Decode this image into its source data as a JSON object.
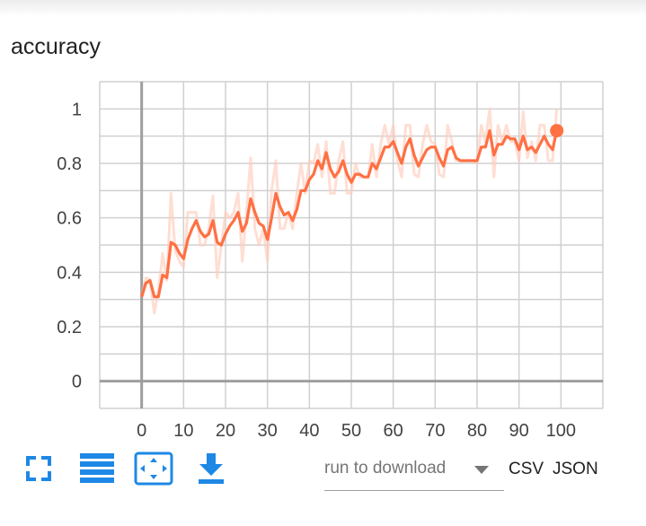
{
  "card": {
    "title": "accuracy"
  },
  "colors": {
    "accent": "#ff7043",
    "accent_raw": "#ffccbc",
    "toolbar_icon": "#1e88e5",
    "grid": "#d0d0d0",
    "axis": "#9e9e9e"
  },
  "chart_data": {
    "type": "line",
    "xlabel": "",
    "ylabel": "",
    "xlim": [
      -10,
      110
    ],
    "ylim": [
      -0.1,
      1.1
    ],
    "xticks": [
      "0",
      "10",
      "20",
      "30",
      "40",
      "50",
      "60",
      "70",
      "80",
      "90",
      "100"
    ],
    "yticks": [
      "0",
      "0.2",
      "0.4",
      "0.6",
      "0.8",
      "1"
    ],
    "grid": true,
    "series": [
      {
        "role": "smoothed",
        "x": [
          0,
          1,
          2,
          3,
          4,
          5,
          6,
          7,
          8,
          9,
          10,
          11,
          12,
          13,
          14,
          15,
          16,
          17,
          18,
          19,
          20,
          21,
          22,
          23,
          24,
          25,
          26,
          27,
          28,
          29,
          30,
          31,
          32,
          33,
          34,
          35,
          36,
          37,
          38,
          39,
          40,
          41,
          42,
          43,
          44,
          45,
          46,
          47,
          48,
          49,
          50,
          51,
          52,
          53,
          54,
          55,
          56,
          57,
          58,
          59,
          60,
          61,
          62,
          63,
          64,
          65,
          66,
          67,
          68,
          69,
          70,
          71,
          72,
          73,
          74,
          75,
          76,
          77,
          78,
          79,
          80,
          81,
          82,
          83,
          84,
          85,
          86,
          87,
          88,
          89,
          90,
          91,
          92,
          93,
          94,
          95,
          96,
          97,
          98,
          99
        ],
        "y": [
          0.31,
          0.36,
          0.37,
          0.31,
          0.31,
          0.39,
          0.38,
          0.51,
          0.5,
          0.47,
          0.45,
          0.52,
          0.56,
          0.59,
          0.55,
          0.53,
          0.54,
          0.59,
          0.51,
          0.5,
          0.54,
          0.57,
          0.59,
          0.62,
          0.55,
          0.58,
          0.67,
          0.62,
          0.58,
          0.57,
          0.52,
          0.6,
          0.69,
          0.64,
          0.61,
          0.62,
          0.59,
          0.63,
          0.7,
          0.7,
          0.74,
          0.76,
          0.81,
          0.78,
          0.84,
          0.78,
          0.75,
          0.77,
          0.81,
          0.76,
          0.73,
          0.76,
          0.76,
          0.75,
          0.75,
          0.8,
          0.78,
          0.82,
          0.86,
          0.86,
          0.88,
          0.84,
          0.8,
          0.86,
          0.89,
          0.83,
          0.79,
          0.82,
          0.85,
          0.86,
          0.86,
          0.82,
          0.79,
          0.85,
          0.86,
          0.82,
          0.81,
          0.81,
          0.81,
          0.81,
          0.81,
          0.86,
          0.86,
          0.92,
          0.83,
          0.87,
          0.87,
          0.9,
          0.89,
          0.89,
          0.85,
          0.9,
          0.85,
          0.86,
          0.84,
          0.87,
          0.9,
          0.87,
          0.85,
          0.92
        ]
      },
      {
        "role": "raw",
        "x": [
          0,
          1,
          2,
          3,
          4,
          5,
          6,
          7,
          8,
          9,
          10,
          11,
          12,
          13,
          14,
          15,
          16,
          17,
          18,
          19,
          20,
          21,
          22,
          23,
          24,
          25,
          26,
          27,
          28,
          29,
          30,
          31,
          32,
          33,
          34,
          35,
          36,
          37,
          38,
          39,
          40,
          41,
          42,
          43,
          44,
          45,
          46,
          47,
          48,
          49,
          50,
          51,
          52,
          53,
          54,
          55,
          56,
          57,
          58,
          59,
          60,
          61,
          62,
          63,
          64,
          65,
          66,
          67,
          68,
          69,
          70,
          71,
          72,
          73,
          74,
          75,
          76,
          77,
          78,
          79,
          80,
          81,
          82,
          83,
          84,
          85,
          86,
          87,
          88,
          89,
          90,
          91,
          92,
          93,
          94,
          95,
          96,
          97,
          98,
          99
        ],
        "y": [
          0.31,
          0.38,
          0.37,
          0.25,
          0.33,
          0.47,
          0.37,
          0.69,
          0.48,
          0.44,
          0.42,
          0.62,
          0.62,
          0.62,
          0.5,
          0.5,
          0.56,
          0.68,
          0.38,
          0.5,
          0.62,
          0.6,
          0.62,
          0.69,
          0.44,
          0.62,
          0.82,
          0.56,
          0.5,
          0.56,
          0.44,
          0.7,
          0.81,
          0.56,
          0.56,
          0.62,
          0.56,
          0.69,
          0.8,
          0.69,
          0.81,
          0.8,
          0.87,
          0.75,
          0.88,
          0.69,
          0.69,
          0.81,
          0.88,
          0.69,
          0.69,
          0.8,
          0.75,
          0.75,
          0.75,
          0.87,
          0.75,
          0.87,
          0.94,
          0.87,
          0.94,
          0.81,
          0.75,
          0.94,
          0.94,
          0.76,
          0.75,
          0.87,
          0.94,
          0.88,
          0.87,
          0.76,
          0.75,
          0.94,
          0.88,
          0.81,
          0.81,
          0.81,
          0.81,
          0.81,
          0.8,
          0.94,
          0.88,
          1.0,
          0.75,
          0.94,
          0.88,
          0.94,
          0.88,
          0.88,
          0.81,
          0.99,
          0.82,
          0.88,
          0.81,
          0.94,
          0.94,
          0.81,
          0.81,
          1.0
        ]
      }
    ]
  },
  "toolbar": {
    "fullscreen_icon": "fullscreen-icon",
    "legend_icon": "list-icon",
    "fit_icon": "fit-domain-icon",
    "download_icon": "download-icon"
  },
  "download": {
    "placeholder": "run to download",
    "csv": "CSV",
    "json": "JSON"
  }
}
